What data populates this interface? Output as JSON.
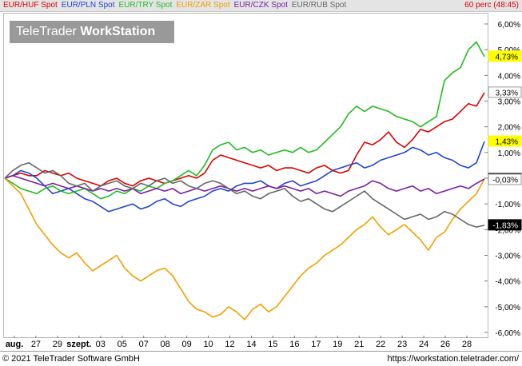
{
  "chart_data": {
    "type": "line",
    "legend": {
      "period": "60 perc (48:45)"
    },
    "x_labels": [
      {
        "label": "aug.",
        "bold": true
      },
      {
        "label": "27"
      },
      {
        "label": "29"
      },
      {
        "label": "szept.",
        "bold": true
      },
      {
        "label": "03"
      },
      {
        "label": "05"
      },
      {
        "label": "07"
      },
      {
        "label": "08"
      },
      {
        "label": "09"
      },
      {
        "label": "10"
      },
      {
        "label": "12"
      },
      {
        "label": "14"
      },
      {
        "label": "15"
      },
      {
        "label": "16"
      },
      {
        "label": "17"
      },
      {
        "label": "19"
      },
      {
        "label": "21"
      },
      {
        "label": "22"
      },
      {
        "label": "23"
      },
      {
        "label": "24"
      },
      {
        "label": "26"
      },
      {
        "label": "28"
      }
    ],
    "yticks": [
      "6,00%",
      "5,00%",
      "4,00%",
      "3,00%",
      "2,00%",
      "1,00%",
      "0,00%",
      "-1,00%",
      "-2,00%",
      "-3,00%",
      "-4,00%",
      "-5,00%",
      "-6,00%"
    ],
    "ylim": [
      -6,
      6
    ],
    "grid": false,
    "series": [
      {
        "name": "EUR/HUF Spot",
        "color": "#dd0000",
        "last_label": "3,33%",
        "badge_bg": "#ffffff",
        "badge_fg": "#000000",
        "x": [
          0,
          1,
          2,
          3,
          4,
          5,
          6,
          7,
          8,
          9,
          10,
          11,
          12,
          13,
          14,
          15,
          16,
          17,
          18,
          19,
          20,
          21,
          22,
          23,
          24,
          25,
          26,
          27,
          28,
          29,
          30,
          31,
          32,
          33,
          34,
          35,
          36,
          37,
          38,
          39,
          40,
          41,
          42,
          43,
          44,
          45,
          46,
          47,
          48,
          49,
          50,
          51,
          52,
          53,
          54,
          55,
          56,
          57,
          58,
          59,
          60
        ],
        "values": [
          0,
          0.1,
          0.2,
          0.1,
          0.1,
          0.3,
          0.2,
          0.1,
          0.2,
          0,
          -0.1,
          -0.2,
          -0.3,
          -0.1,
          0,
          -0.2,
          -0.3,
          -0.1,
          0,
          -0.1,
          -0.2,
          -0.1,
          0,
          0.1,
          0.0,
          0.2,
          0.7,
          0.9,
          0.8,
          0.7,
          0.6,
          0.5,
          0.4,
          0.5,
          0.3,
          0.4,
          0.4,
          0.3,
          0.2,
          0.4,
          0.5,
          0.3,
          0.2,
          0.3,
          0.9,
          1.4,
          1.3,
          1.5,
          1.8,
          1.4,
          1.2,
          1.5,
          1.9,
          1.8,
          2.0,
          2.2,
          2.3,
          2.6,
          2.9,
          2.8,
          3.33
        ]
      },
      {
        "name": "EUR/PLN Spot",
        "color": "#2244cc",
        "last_label": "1,43%",
        "badge_bg": "#ffff00",
        "badge_fg": "#000000",
        "x": [
          0,
          1,
          2,
          3,
          4,
          5,
          6,
          7,
          8,
          9,
          10,
          11,
          12,
          13,
          14,
          15,
          16,
          17,
          18,
          19,
          20,
          21,
          22,
          23,
          24,
          25,
          26,
          27,
          28,
          29,
          30,
          31,
          32,
          33,
          34,
          35,
          36,
          37,
          38,
          39,
          40,
          41,
          42,
          43,
          44,
          45,
          46,
          47,
          48,
          49,
          50,
          51,
          52,
          53,
          54,
          55,
          56,
          57,
          58,
          59,
          60
        ],
        "values": [
          0,
          0.1,
          0.3,
          0.2,
          0,
          -0.3,
          -0.6,
          -0.5,
          -0.4,
          -0.6,
          -0.8,
          -0.9,
          -1.1,
          -1.3,
          -1.2,
          -1.1,
          -1.0,
          -1.2,
          -1.1,
          -0.9,
          -0.8,
          -1.0,
          -1.1,
          -0.9,
          -0.8,
          -0.7,
          -0.5,
          -0.4,
          -0.5,
          -0.3,
          -0.2,
          -0.2,
          -0.1,
          -0.3,
          -0.4,
          -0.2,
          -0.1,
          -0.3,
          -0.2,
          -0.1,
          0.1,
          0.3,
          0.4,
          0.5,
          0.6,
          0.4,
          0.5,
          0.7,
          0.8,
          0.9,
          1.0,
          1.2,
          1.1,
          0.9,
          1.0,
          0.8,
          0.7,
          0.5,
          0.4,
          0.6,
          1.43
        ]
      },
      {
        "name": "EUR/TRY Spot",
        "color": "#22bb22",
        "last_label": "4,73%",
        "badge_bg": "#ffff00",
        "badge_fg": "#000000",
        "x": [
          0,
          1,
          2,
          3,
          4,
          5,
          6,
          7,
          8,
          9,
          10,
          11,
          12,
          13,
          14,
          15,
          16,
          17,
          18,
          19,
          20,
          21,
          22,
          23,
          24,
          25,
          26,
          27,
          28,
          29,
          30,
          31,
          32,
          33,
          34,
          35,
          36,
          37,
          38,
          39,
          40,
          41,
          42,
          43,
          44,
          45,
          46,
          47,
          48,
          49,
          50,
          51,
          52,
          53,
          54,
          55,
          56,
          57,
          58,
          59,
          60
        ],
        "values": [
          0,
          -0.2,
          -0.4,
          -0.5,
          -0.6,
          -0.4,
          -0.3,
          -0.5,
          -0.6,
          -0.5,
          -0.4,
          -0.6,
          -0.8,
          -0.7,
          -0.5,
          -0.6,
          -0.4,
          -0.5,
          -0.3,
          -0.4,
          -0.2,
          -0.1,
          0.1,
          0.3,
          0.1,
          0.5,
          1.1,
          1.3,
          1.4,
          1.1,
          1.2,
          1.0,
          1.1,
          0.9,
          1.0,
          1.1,
          1.0,
          1.2,
          1.0,
          1.1,
          1.4,
          1.7,
          2.0,
          2.5,
          2.8,
          2.6,
          2.8,
          2.7,
          2.6,
          2.4,
          2.3,
          2.2,
          2.0,
          2.2,
          2.4,
          3.8,
          4.1,
          4.3,
          5.0,
          5.3,
          4.73
        ]
      },
      {
        "name": "EUR/ZAR Spot",
        "color": "#f0a000",
        "last_label": "-0,03%",
        "badge_bg": "#000000",
        "badge_fg": "#ffffff",
        "x": [
          0,
          1,
          2,
          3,
          4,
          5,
          6,
          7,
          8,
          9,
          10,
          11,
          12,
          13,
          14,
          15,
          16,
          17,
          18,
          19,
          20,
          21,
          22,
          23,
          24,
          25,
          26,
          27,
          28,
          29,
          30,
          31,
          32,
          33,
          34,
          35,
          36,
          37,
          38,
          39,
          40,
          41,
          42,
          43,
          44,
          45,
          46,
          47,
          48,
          49,
          50,
          51,
          52,
          53,
          54,
          55,
          56,
          57,
          58,
          59,
          60
        ],
        "values": [
          0,
          -0.3,
          -0.6,
          -1.2,
          -1.8,
          -2.2,
          -2.6,
          -2.9,
          -3.1,
          -2.9,
          -3.3,
          -3.6,
          -3.4,
          -3.2,
          -3.0,
          -3.5,
          -3.8,
          -4.0,
          -3.8,
          -3.6,
          -3.5,
          -3.8,
          -4.3,
          -4.8,
          -5.1,
          -5.2,
          -5.4,
          -5.3,
          -5.0,
          -5.2,
          -5.5,
          -5.1,
          -4.9,
          -5.2,
          -5.0,
          -4.6,
          -4.2,
          -3.8,
          -3.5,
          -3.3,
          -3.0,
          -2.8,
          -2.6,
          -2.3,
          -2.0,
          -1.8,
          -1.5,
          -1.9,
          -2.2,
          -2.0,
          -1.8,
          -2.1,
          -2.4,
          -2.8,
          -2.3,
          -2.1,
          -1.6,
          -1.2,
          -0.9,
          -0.6,
          -0.03
        ]
      },
      {
        "name": "EUR/CZK Spot",
        "color": "#7a1fa2",
        "last_label": "-0,03%",
        "badge_bg": "#ffffff",
        "badge_fg": "#000000",
        "x": [
          0,
          1,
          2,
          3,
          4,
          5,
          6,
          7,
          8,
          9,
          10,
          11,
          12,
          13,
          14,
          15,
          16,
          17,
          18,
          19,
          20,
          21,
          22,
          23,
          24,
          25,
          26,
          27,
          28,
          29,
          30,
          31,
          32,
          33,
          34,
          35,
          36,
          37,
          38,
          39,
          40,
          41,
          42,
          43,
          44,
          45,
          46,
          47,
          48,
          49,
          50,
          51,
          52,
          53,
          54,
          55,
          56,
          57,
          58,
          59,
          60
        ],
        "values": [
          0,
          0.1,
          0.0,
          -0.1,
          -0.2,
          -0.3,
          -0.2,
          -0.3,
          -0.4,
          -0.3,
          -0.4,
          -0.5,
          -0.4,
          -0.5,
          -0.4,
          -0.5,
          -0.4,
          -0.6,
          -0.5,
          -0.4,
          -0.5,
          -0.4,
          -0.6,
          -0.5,
          -0.4,
          -0.5,
          -0.4,
          -0.3,
          -0.4,
          -0.5,
          -0.4,
          -0.5,
          -0.4,
          -0.3,
          -0.4,
          -0.3,
          -0.4,
          -0.5,
          -0.4,
          -0.6,
          -0.5,
          -0.6,
          -0.7,
          -0.5,
          -0.4,
          -0.3,
          -0.1,
          -0.2,
          -0.4,
          -0.5,
          -0.4,
          -0.3,
          -0.5,
          -0.4,
          -0.6,
          -0.5,
          -0.4,
          -0.3,
          -0.4,
          -0.2,
          -0.03
        ]
      },
      {
        "name": "EUR/RUB Spot",
        "color": "#666666",
        "last_label": "-1,83%",
        "badge_bg": "#000000",
        "badge_fg": "#ffffff",
        "x": [
          0,
          1,
          2,
          3,
          4,
          5,
          6,
          7,
          8,
          9,
          10,
          11,
          12,
          13,
          14,
          15,
          16,
          17,
          18,
          19,
          20,
          21,
          22,
          23,
          24,
          25,
          26,
          27,
          28,
          29,
          30,
          31,
          32,
          33,
          34,
          35,
          36,
          37,
          38,
          39,
          40,
          41,
          42,
          43,
          44,
          45,
          46,
          47,
          48,
          49,
          50,
          51,
          52,
          53,
          54,
          55,
          56,
          57,
          58,
          59,
          60
        ],
        "values": [
          0,
          0.3,
          0.5,
          0.6,
          0.4,
          0.2,
          0.3,
          0.1,
          -0.2,
          -0.3,
          -0.2,
          -0.5,
          -0.3,
          -0.2,
          -0.1,
          -0.3,
          -0.4,
          -0.2,
          -0.3,
          -0.1,
          0.0,
          -0.2,
          -0.1,
          -0.3,
          -0.4,
          -0.2,
          -0.1,
          -0.2,
          -0.4,
          -0.6,
          -0.5,
          -0.7,
          -0.8,
          -0.6,
          -0.5,
          -0.4,
          -0.7,
          -0.9,
          -0.8,
          -1.0,
          -1.2,
          -1.3,
          -1.1,
          -0.9,
          -0.7,
          -0.5,
          -0.8,
          -1.0,
          -1.2,
          -1.4,
          -1.6,
          -1.5,
          -1.4,
          -1.6,
          -1.5,
          -1.3,
          -1.4,
          -1.6,
          -1.8,
          -1.9,
          -1.83
        ]
      }
    ]
  },
  "branding": {
    "logo_light": "TeleTrader ",
    "logo_bold": "WorkStation"
  },
  "footer": {
    "copyright": "© 2021 TeleTrader Software GmbH",
    "website": "https://workstation.teletrader.com/"
  }
}
